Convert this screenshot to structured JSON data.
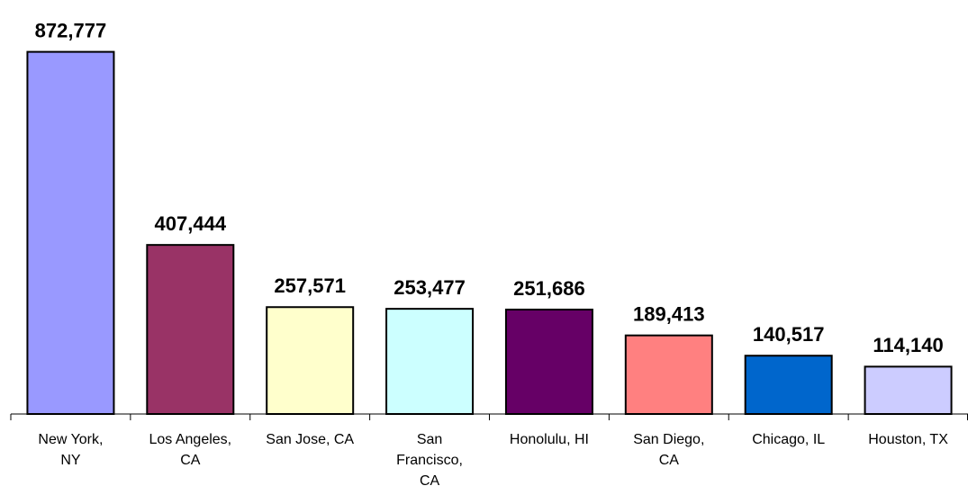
{
  "chart_data": {
    "type": "bar",
    "categories": [
      "New York,\nNY",
      "Los Angeles,\nCA",
      "San Jose, CA",
      "San\nFrancisco,\nCA",
      "Honolulu, HI",
      "San Diego,\nCA",
      "Chicago, IL",
      "Houston, TX"
    ],
    "values": [
      872777,
      407444,
      257571,
      253477,
      251686,
      189413,
      140517,
      114140
    ],
    "value_labels": [
      "872,777",
      "407,444",
      "257,571",
      "253,477",
      "251,686",
      "189,413",
      "140,517",
      "114,140"
    ],
    "colors": [
      "#9999ff",
      "#993366",
      "#ffffcc",
      "#ccffff",
      "#660066",
      "#ff8080",
      "#0066cc",
      "#ccccff"
    ],
    "ylim": [
      0,
      950000
    ]
  }
}
